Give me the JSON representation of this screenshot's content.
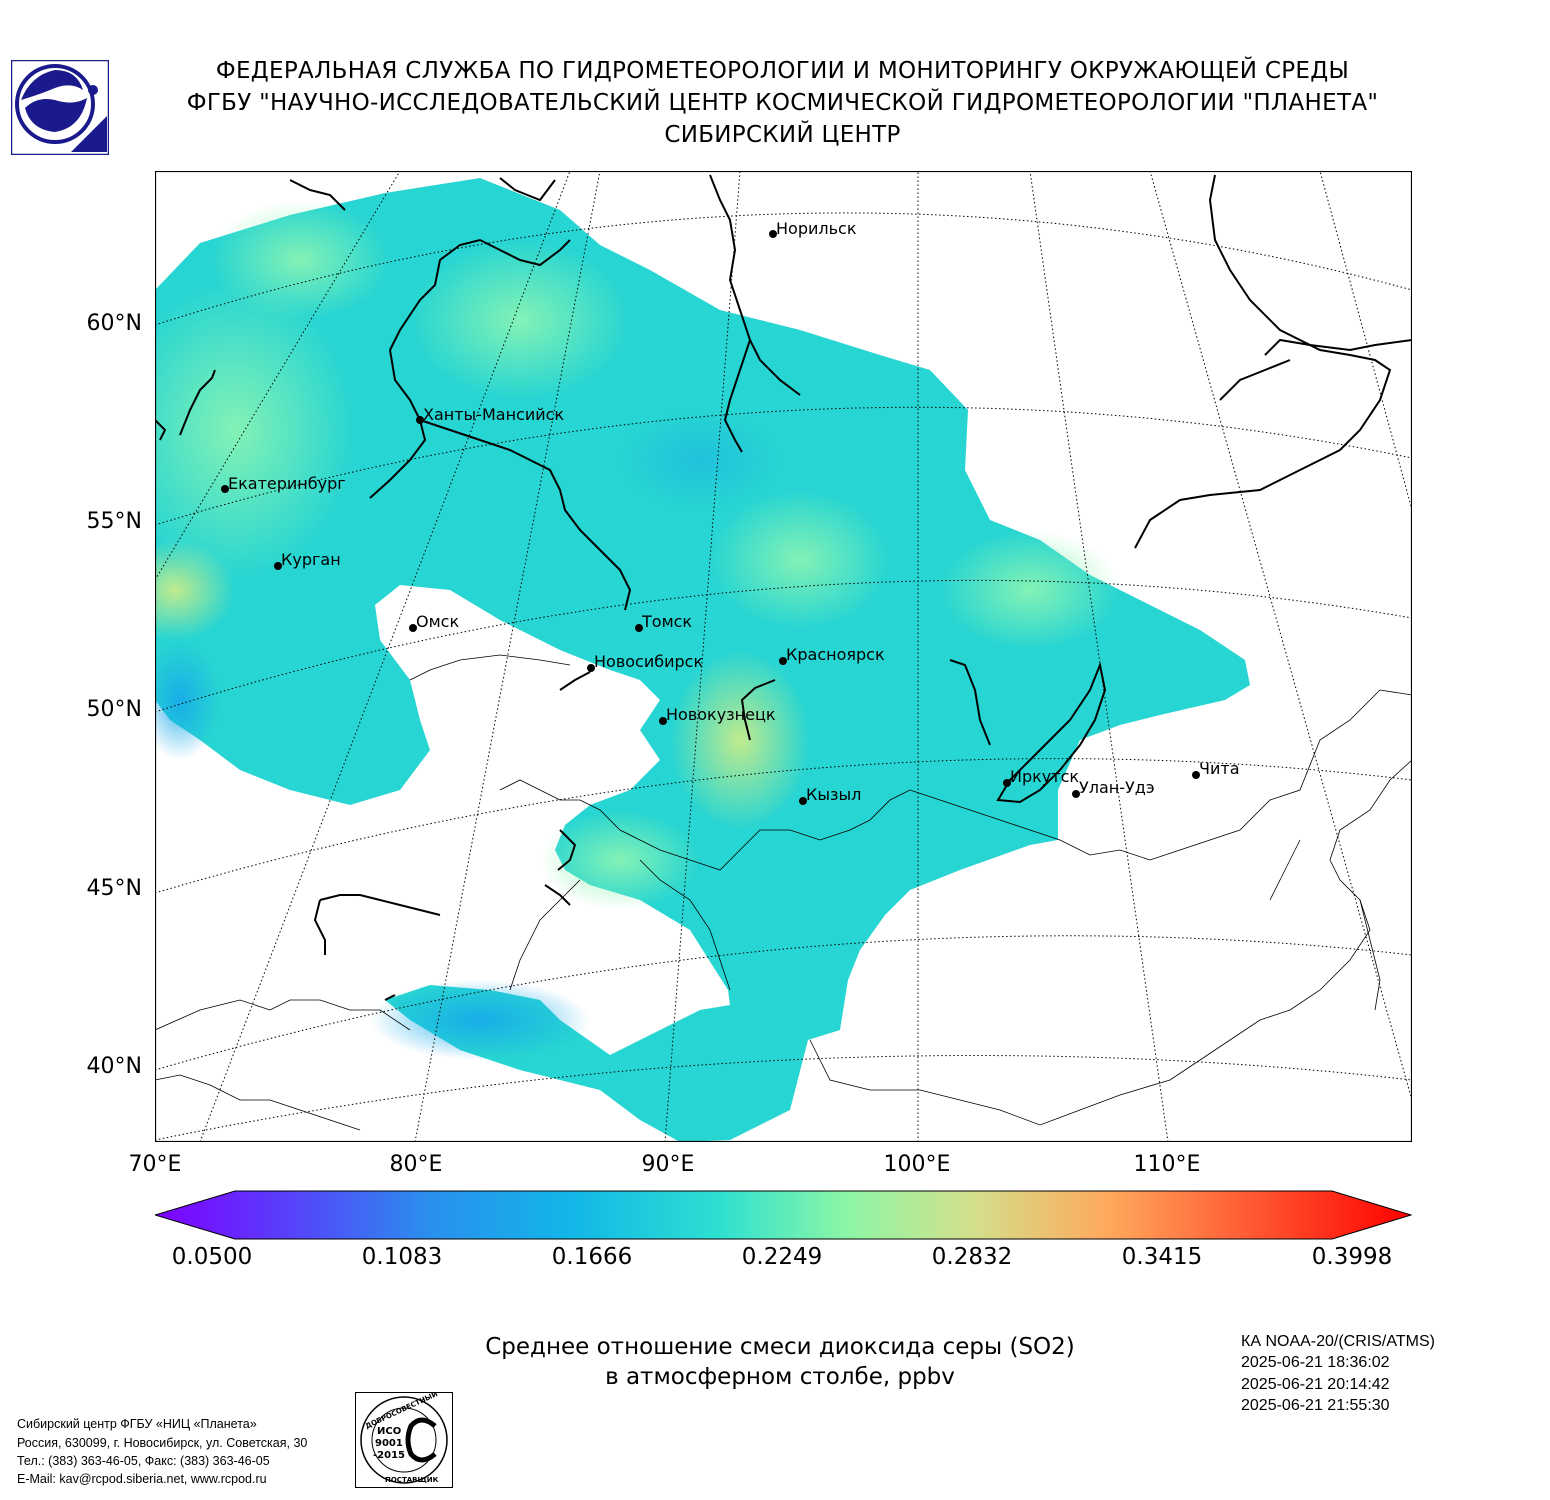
{
  "header": {
    "line1": "ФЕДЕРАЛЬНАЯ СЛУЖБА ПО ГИДРОМЕТЕОРОЛОГИИ И МОНИТОРИНГУ ОКРУЖАЮЩЕЙ СРЕДЫ",
    "line2": "ФГБУ \"НАУЧНО-ИССЛЕДОВАТЕЛЬСКИЙ ЦЕНТР КОСМИЧЕСКОЙ ГИДРОМЕТЕОРОЛОГИИ \"ПЛАНЕТА\"",
    "line3": "СИБИРСКИЙ ЦЕНТР"
  },
  "map": {
    "lat_labels": [
      "60°N",
      "55°N",
      "50°N",
      "45°N",
      "40°N"
    ],
    "lon_labels": [
      "70°E",
      "80°E",
      "90°E",
      "100°E",
      "110°E"
    ],
    "cities": [
      {
        "name": "Норильск"
      },
      {
        "name": "Ханты-Мансийск"
      },
      {
        "name": "Екатеринбург"
      },
      {
        "name": "Курган"
      },
      {
        "name": "Омск"
      },
      {
        "name": "Томск"
      },
      {
        "name": "Новосибирск"
      },
      {
        "name": "Красноярск"
      },
      {
        "name": "Новокузнецк"
      },
      {
        "name": "Кызыл"
      },
      {
        "name": "Иркутск"
      },
      {
        "name": "Улан-Удэ"
      },
      {
        "name": "Чита"
      }
    ],
    "colors": {
      "low": "#7f00ff",
      "mid": "#1fcfd8",
      "high": "#ff0000"
    }
  },
  "colorbar": {
    "ticks": [
      "0.0500",
      "0.1083",
      "0.1666",
      "0.2249",
      "0.2832",
      "0.3415",
      "0.3998"
    ],
    "min": 0.05,
    "max": 0.3998
  },
  "caption": {
    "line1": "Среднее отношение смеси диоксида серы (SO2)",
    "line2": "в атмосферном столбе, ppbv"
  },
  "satellite": {
    "name": "КА NOAA-20/(CRIS/ATMS)",
    "times": [
      "2025-06-21 18:36:02",
      "2025-06-21 20:14:42",
      "2025-06-21 21:55:30"
    ]
  },
  "contact": {
    "line1": "Сибирский центр ФГБУ «НИЦ «Планета»",
    "line2": "Россия, 630099, г. Новосибирск, ул. Советская, 30",
    "line3": "Тел.: (383) 363-46-05, Факс: (383) 363-46-05",
    "line4": "E-Mail: kav@rcpod.siberia.net, www.rcpod.ru"
  },
  "iso_badge": {
    "top_text": "ДОБРОСОВЕСТНЫЙ",
    "line1": "ИСО",
    "line2": "9001",
    "line3": "-2015",
    "bottom_text": "ПОСТАВЩИК"
  }
}
